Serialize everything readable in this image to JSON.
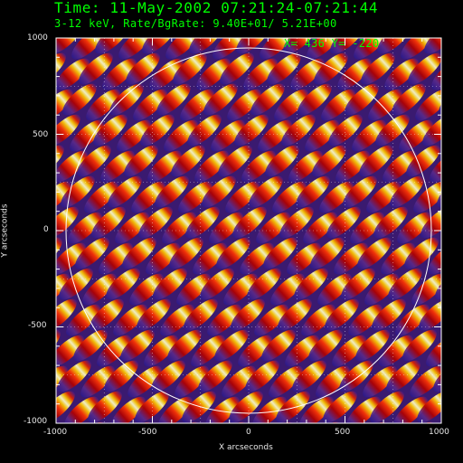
{
  "header": {
    "title": "Time: 11-May-2002 07:21:24-07:21:44",
    "subtitle": "3-12 keV, Rate/BgRate:  9.40E+01/  5.21E+00",
    "cursor_readout": "X=  436 Y=  -220"
  },
  "axes": {
    "xlabel": "X arcseconds",
    "ylabel": "Y arcseconds",
    "xlim": [
      -1000,
      1000
    ],
    "ylim": [
      -1000,
      1000
    ],
    "xticks": [
      "-1000",
      "-500",
      "0",
      "500",
      "1000"
    ],
    "yticks": [
      "1000",
      "500",
      "0",
      "-500",
      "-1000"
    ],
    "grid": "dotted, every 250 arcsec",
    "solar_limb": "white circle, radius ~ 950 arcsec, centered at origin"
  },
  "colors": {
    "text": "#00ff00",
    "axes": "#ffffff",
    "colormap": [
      "#0000ff",
      "#5a2a8a",
      "#aa0000",
      "#ff3300",
      "#ffcc00",
      "#ffffff"
    ]
  }
}
